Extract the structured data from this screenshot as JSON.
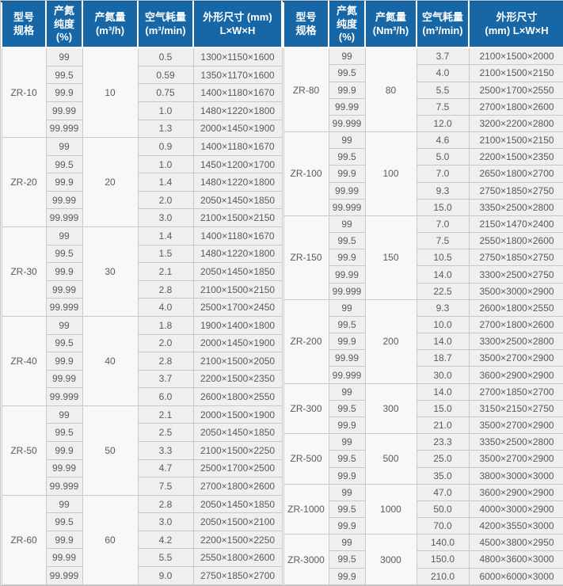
{
  "colors": {
    "header_bg": "#1767a6",
    "header_top_line": "#0f5fa0",
    "cell_bg": "#efefef",
    "merged_cell_bg": "#f8f8f8",
    "border": "#c9c9c9",
    "cell_text": "#5a5a5a",
    "header_text": "#ffffff"
  },
  "tables": [
    {
      "name": "left",
      "headers": [
        [
          "型号",
          "规格"
        ],
        [
          "产氮",
          "纯度",
          "(%)"
        ],
        [
          "产氮量",
          "(m³/h)"
        ],
        [
          "空气耗量",
          "(m³/min)"
        ],
        [
          "外形尺寸 (mm)",
          "L×W×H"
        ]
      ],
      "groups": [
        {
          "model": "ZR-10",
          "output": "10",
          "rows": [
            {
              "purity": "99",
              "air": "0.5",
              "dims": "1300×1150×1600"
            },
            {
              "purity": "99.5",
              "air": "0.59",
              "dims": "1350×1170×1600"
            },
            {
              "purity": "99.9",
              "air": "0.75",
              "dims": "1400×1180×1670"
            },
            {
              "purity": "99.99",
              "air": "1.0",
              "dims": "1480×1220×1800"
            },
            {
              "purity": "99.999",
              "air": "1.3",
              "dims": "2000×1450×1900"
            }
          ]
        },
        {
          "model": "ZR-20",
          "output": "20",
          "rows": [
            {
              "purity": "99",
              "air": "0.9",
              "dims": "1400×1180×1670"
            },
            {
              "purity": "99.5",
              "air": "1.0",
              "dims": "1450×1200×1700"
            },
            {
              "purity": "99.9",
              "air": "1.4",
              "dims": "1480×1220×1800"
            },
            {
              "purity": "99.99",
              "air": "2.0",
              "dims": "2050×1450×1850"
            },
            {
              "purity": "99.999",
              "air": "3.0",
              "dims": "2100×1500×2150"
            }
          ]
        },
        {
          "model": "ZR-30",
          "output": "30",
          "rows": [
            {
              "purity": "99",
              "air": "1.4",
              "dims": "1400×1180×1670"
            },
            {
              "purity": "99.5",
              "air": "1.5",
              "dims": "1480×1220×1800"
            },
            {
              "purity": "99.9",
              "air": "2.1",
              "dims": "2050×1450×1850"
            },
            {
              "purity": "99.99",
              "air": "2.8",
              "dims": "2100×1500×2150"
            },
            {
              "purity": "99.999",
              "air": "4.0",
              "dims": "2500×1700×2450"
            }
          ]
        },
        {
          "model": "ZR-40",
          "output": "40",
          "rows": [
            {
              "purity": "99",
              "air": "1.8",
              "dims": "1900×1400×1800"
            },
            {
              "purity": "99.5",
              "air": "2.0",
              "dims": "2000×1450×1900"
            },
            {
              "purity": "99.9",
              "air": "2.8",
              "dims": "2100×1500×2050"
            },
            {
              "purity": "99.99",
              "air": "3.7",
              "dims": "2200×1500×2350"
            },
            {
              "purity": "99.999",
              "air": "6.0",
              "dims": "2600×1800×2550"
            }
          ]
        },
        {
          "model": "ZR-50",
          "output": "50",
          "rows": [
            {
              "purity": "99",
              "air": "2.1",
              "dims": "2000×1500×1900"
            },
            {
              "purity": "99.5",
              "air": "2.5",
              "dims": "2050×1450×1850"
            },
            {
              "purity": "99.9",
              "air": "3.3",
              "dims": "2100×1500×2250"
            },
            {
              "purity": "99.99",
              "air": "4.7",
              "dims": "2500×1700×2500"
            },
            {
              "purity": "99.999",
              "air": "7.5",
              "dims": "2700×1800×2600"
            }
          ]
        },
        {
          "model": "ZR-60",
          "output": "60",
          "rows": [
            {
              "purity": "99",
              "air": "2.8",
              "dims": "2050×1450×1850"
            },
            {
              "purity": "99.5",
              "air": "3.0",
              "dims": "2050×1500×2100"
            },
            {
              "purity": "99.9",
              "air": "4.2",
              "dims": "2200×1500×2250"
            },
            {
              "purity": "99.99",
              "air": "5.5",
              "dims": "2550×1800×2600"
            },
            {
              "purity": "99.999",
              "air": "9.0",
              "dims": "2750×1850×2700"
            }
          ]
        }
      ]
    },
    {
      "name": "right",
      "headers": [
        [
          "型号",
          "规格"
        ],
        [
          "产氮",
          "纯度",
          "(%)"
        ],
        [
          "产氮量",
          "(Nm³/h)"
        ],
        [
          "空气耗量",
          "(m³/min)"
        ],
        [
          "外形尺寸",
          "(mm)  L×W×H"
        ]
      ],
      "groups": [
        {
          "model": "ZR-80",
          "output": "80",
          "rows": [
            {
              "purity": "99",
              "air": "3.7",
              "dims": "2100×1500×2000"
            },
            {
              "purity": "99.5",
              "air": "4.0",
              "dims": "2100×1500×2150"
            },
            {
              "purity": "99.9",
              "air": "5.5",
              "dims": "2500×1700×2550"
            },
            {
              "purity": "99.99",
              "air": "7.5",
              "dims": "2700×1800×2600"
            },
            {
              "purity": "99.999",
              "air": "12.0",
              "dims": "3200×2200×2800"
            }
          ]
        },
        {
          "model": "ZR-100",
          "output": "100",
          "rows": [
            {
              "purity": "99",
              "air": "4.6",
              "dims": "2100×1500×2150"
            },
            {
              "purity": "99.5",
              "air": "5.0",
              "dims": "2200×1500×2350"
            },
            {
              "purity": "99.9",
              "air": "7.0",
              "dims": "2650×1800×2700"
            },
            {
              "purity": "99.99",
              "air": "9.3",
              "dims": "2750×1850×2750"
            },
            {
              "purity": "99.999",
              "air": "15.0",
              "dims": "3350×2500×2800"
            }
          ]
        },
        {
          "model": "ZR-150",
          "output": "150",
          "rows": [
            {
              "purity": "99",
              "air": "7.0",
              "dims": "2150×1470×2400"
            },
            {
              "purity": "99.5",
              "air": "7.5",
              "dims": "2550×1800×2600"
            },
            {
              "purity": "99.9",
              "air": "10.5",
              "dims": "2750×1850×2750"
            },
            {
              "purity": "99.99",
              "air": "14.0",
              "dims": "3300×2500×2750"
            },
            {
              "purity": "99.999",
              "air": "22.5",
              "dims": "3500×3000×2900"
            }
          ]
        },
        {
          "model": "ZR-200",
          "output": "200",
          "rows": [
            {
              "purity": "99",
              "air": "9.3",
              "dims": "2600×1800×2550"
            },
            {
              "purity": "99.5",
              "air": "10.0",
              "dims": "2700×1800×2600"
            },
            {
              "purity": "99.9",
              "air": "14.0",
              "dims": "3300×2500×2800"
            },
            {
              "purity": "99.99",
              "air": "18.7",
              "dims": "3500×2700×2900"
            },
            {
              "purity": "99.999",
              "air": "30.0",
              "dims": "3600×2900×2900"
            }
          ]
        },
        {
          "model": "ZR-300",
          "output": "300",
          "rows": [
            {
              "purity": "99",
              "air": "14.0",
              "dims": "2700×1850×2700"
            },
            {
              "purity": "99.5",
              "air": "15.0",
              "dims": "3150×2150×2750"
            },
            {
              "purity": "99.9",
              "air": "21.0",
              "dims": "3500×2700×2900"
            }
          ]
        },
        {
          "model": "ZR-500",
          "output": "500",
          "rows": [
            {
              "purity": "99",
              "air": "23.3",
              "dims": "3350×2500×2800"
            },
            {
              "purity": "99.5",
              "air": "25.0",
              "dims": "3500×2700×2900"
            },
            {
              "purity": "99.9",
              "air": "35.0",
              "dims": "3800×3000×3000"
            }
          ]
        },
        {
          "model": "ZR-1000",
          "output": "1000",
          "rows": [
            {
              "purity": "99",
              "air": "47.0",
              "dims": "3600×2900×2900"
            },
            {
              "purity": "99.5",
              "air": "50.0",
              "dims": "4000×3000×2900"
            },
            {
              "purity": "99.9",
              "air": "70.0",
              "dims": "4200×3550×3000"
            }
          ]
        },
        {
          "model": "ZR-3000",
          "output": "3000",
          "rows": [
            {
              "purity": "99",
              "air": "140.0",
              "dims": "4500×3800×2950"
            },
            {
              "purity": "99.5",
              "air": "150.0",
              "dims": "4800×3600×3000"
            },
            {
              "purity": "99.9",
              "air": "210.0",
              "dims": "6000×6000×3000"
            }
          ]
        }
      ]
    }
  ]
}
